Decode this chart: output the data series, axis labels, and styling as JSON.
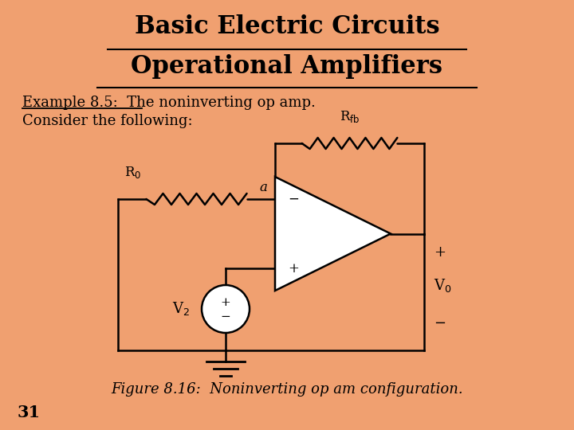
{
  "background_color": "#F0A070",
  "title1": "Basic Electric Circuits",
  "title2": "Operational Amplifiers",
  "example_label": "Example 8.5:",
  "example_rest": "  The noninverting op amp.",
  "consider_text": "Consider the following:",
  "figure_caption": "Figure 8.16:  Noninverting op am configuration.",
  "page_number": "31",
  "title_fontsize": 22,
  "body_fontsize": 13,
  "caption_fontsize": 13,
  "lw": 1.8
}
